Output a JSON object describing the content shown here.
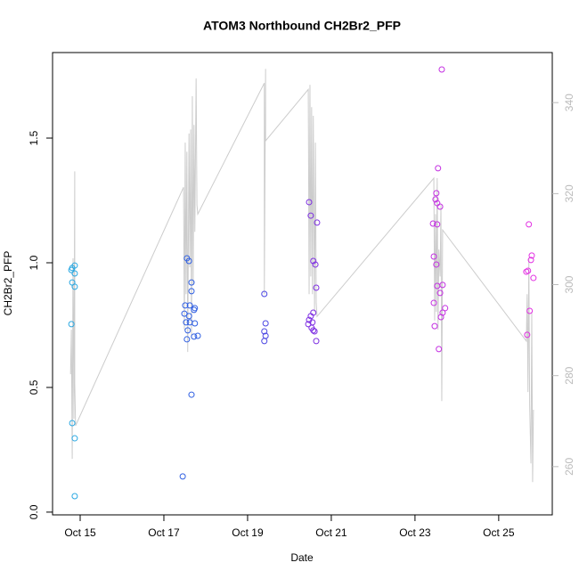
{
  "chart_data": {
    "type": "scatter",
    "title": "ATOM3 Northbound CH2Br2_PFP",
    "x_label": "Date",
    "y_label": "CH2Br2_PFP",
    "xlim": [
      14.34,
      26.28
    ],
    "xticks": [
      {
        "value": 15,
        "label": "Oct 15"
      },
      {
        "value": 17,
        "label": "Oct 17"
      },
      {
        "value": 19,
        "label": "Oct 19"
      },
      {
        "value": 21,
        "label": "Oct 21"
      },
      {
        "value": 23,
        "label": "Oct 23"
      },
      {
        "value": 25,
        "label": "Oct 25"
      }
    ],
    "ylim": [
      -0.011,
      1.843
    ],
    "yticks": [
      {
        "value": 0,
        "label": "0.0"
      },
      {
        "value": 0.5,
        "label": "0.5"
      },
      {
        "value": 1,
        "label": "1.0"
      },
      {
        "value": 1.5,
        "label": "1.5"
      }
    ],
    "y2lim": [
      249.4,
      351.0
    ],
    "y2ticks": [
      260,
      280,
      300,
      320,
      340
    ],
    "series": [
      {
        "color": "#2aa8e2",
        "x": [
          14.81,
          14.87,
          14.79,
          14.87,
          14.81,
          14.87,
          14.79,
          14.81,
          14.87,
          14.87
        ],
        "values": [
          0.979,
          0.989,
          0.971,
          0.957,
          0.921,
          0.904,
          0.754,
          0.357,
          0.296,
          0.064
        ]
      },
      {
        "color": "#2f5fe2",
        "x": [
          17.45,
          17.55,
          17.6,
          17.51,
          17.49,
          17.66,
          17.66,
          17.62,
          17.74,
          17.72,
          17.6,
          17.53,
          17.62,
          17.74,
          17.57,
          17.55,
          17.72,
          17.81,
          17.66
        ],
        "values": [
          0.143,
          1.018,
          1.007,
          0.829,
          0.796,
          0.921,
          0.886,
          0.829,
          0.818,
          0.811,
          0.786,
          0.761,
          0.761,
          0.757,
          0.729,
          0.693,
          0.704,
          0.707,
          0.471
        ]
      },
      {
        "color": "#4a45e2",
        "x": [
          19.4,
          19.43,
          19.4,
          19.43,
          19.4
        ],
        "values": [
          0.875,
          0.757,
          0.725,
          0.707,
          0.686
        ]
      },
      {
        "color": "#7e2fe2",
        "x": [
          20.47,
          20.51,
          20.66,
          20.57,
          20.62,
          20.64,
          20.57,
          20.51,
          20.47,
          20.45,
          20.55,
          20.53,
          20.57,
          20.6,
          20.64
        ],
        "values": [
          1.243,
          1.189,
          1.161,
          1.007,
          0.993,
          0.9,
          0.8,
          0.786,
          0.771,
          0.754,
          0.761,
          0.739,
          0.729,
          0.725,
          0.686
        ]
      },
      {
        "color": "#c42fe2",
        "x": [
          23.64,
          23.55,
          23.51,
          23.49,
          23.53,
          23.6,
          23.43,
          23.53,
          23.45,
          23.51,
          23.53,
          23.66,
          23.6,
          23.45,
          23.72,
          23.66,
          23.62,
          23.47,
          23.57
        ],
        "values": [
          1.775,
          1.379,
          1.279,
          1.254,
          1.239,
          1.225,
          1.157,
          1.154,
          1.025,
          0.993,
          0.907,
          0.911,
          0.879,
          0.839,
          0.818,
          0.8,
          0.782,
          0.746,
          0.654
        ]
      },
      {
        "color": "#e22fe2",
        "x": [
          25.72,
          25.79,
          25.77,
          25.7,
          25.66,
          25.83,
          25.74,
          25.68
        ],
        "values": [
          1.154,
          1.029,
          1.011,
          0.968,
          0.964,
          0.939,
          0.807,
          0.711
        ]
      }
    ],
    "line": {
      "type": "line",
      "axis": "y2",
      "color": "#cccccc",
      "x": [
        14.77,
        14.79,
        14.81,
        14.83,
        14.85,
        14.87,
        14.87,
        14.89,
        17.47,
        17.49,
        17.51,
        17.53,
        17.55,
        17.57,
        17.6,
        17.62,
        17.64,
        17.66,
        17.68,
        17.7,
        17.72,
        17.74,
        17.77,
        17.79,
        17.81,
        19.4,
        19.4,
        19.43,
        19.43,
        20.45,
        20.47,
        20.49,
        20.51,
        20.53,
        20.55,
        20.57,
        20.6,
        20.62,
        20.64,
        20.66,
        23.45,
        23.47,
        23.49,
        23.51,
        23.53,
        23.55,
        23.57,
        23.6,
        23.62,
        23.64,
        23.66,
        25.66,
        25.68,
        25.7,
        25.72,
        25.74,
        25.77,
        25.79,
        25.81,
        25.83
      ],
      "values": [
        280.3,
        290.1,
        261.7,
        305.8,
        270.5,
        324.9,
        278.4,
        269.0,
        321.4,
        290.1,
        331.2,
        297.9,
        329.2,
        285.2,
        333.2,
        303.8,
        334.1,
        288.1,
        341.4,
        299.9,
        335.1,
        311.6,
        345.3,
        317.5,
        315.5,
        344.3,
        297.9,
        347.4,
        331.6,
        342.9,
        297.9,
        343.9,
        301.8,
        339.0,
        297.9,
        337.1,
        294.0,
        331.2,
        296.0,
        293.0,
        323.4,
        292.1,
        315.5,
        294.0,
        323.4,
        290.1,
        307.7,
        301.8,
        317.5,
        274.4,
        312.0,
        287.6,
        297.9,
        276.4,
        305.8,
        273.5,
        260.7,
        294.0,
        256.6,
        272.5
      ]
    }
  }
}
